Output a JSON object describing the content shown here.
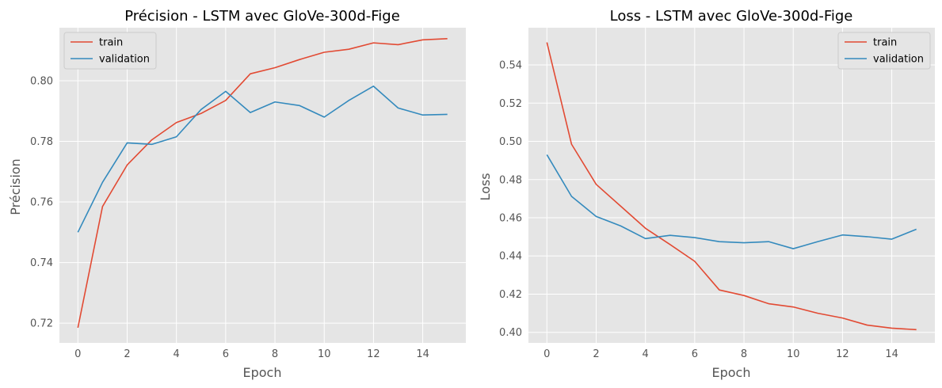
{
  "colors": {
    "train": "#E24A33",
    "validation": "#348ABD",
    "plot_bg": "#E5E5E5",
    "grid": "#FFFFFF"
  },
  "chart_data": [
    {
      "type": "line",
      "title": "Précision - LSTM avec GloVe-300d-Fige",
      "xlabel": "Epoch",
      "ylabel": "Précision",
      "xlim": [
        -0.75,
        15.75
      ],
      "ylim": [
        0.7135,
        0.8175
      ],
      "xticks": [
        0,
        2,
        4,
        6,
        8,
        10,
        12,
        14
      ],
      "yticks": [
        0.72,
        0.74,
        0.76,
        0.78,
        0.8
      ],
      "ytick_labels": [
        "0.72",
        "0.74",
        "0.76",
        "0.78",
        "0.80"
      ],
      "grid": true,
      "legend": "top-left",
      "x": [
        0,
        1,
        2,
        3,
        4,
        5,
        6,
        7,
        8,
        9,
        10,
        11,
        12,
        13,
        14,
        15
      ],
      "series": [
        {
          "name": "train",
          "values": [
            0.7185,
            0.7585,
            0.7722,
            0.7805,
            0.7862,
            0.7892,
            0.7935,
            0.8023,
            0.8043,
            0.807,
            0.8094,
            0.8104,
            0.8125,
            0.8119,
            0.8135,
            0.8139
          ]
        },
        {
          "name": "validation",
          "values": [
            0.75,
            0.7665,
            0.7795,
            0.779,
            0.7815,
            0.7905,
            0.7965,
            0.7895,
            0.793,
            0.7918,
            0.788,
            0.7935,
            0.7982,
            0.791,
            0.7887,
            0.7889
          ]
        }
      ]
    },
    {
      "type": "line",
      "title": "Loss - LSTM avec GloVe-300d-Fige",
      "xlabel": "Epoch",
      "ylabel": "Loss",
      "xlim": [
        -0.75,
        15.75
      ],
      "ylim": [
        0.3945,
        0.5595
      ],
      "xticks": [
        0,
        2,
        4,
        6,
        8,
        10,
        12,
        14
      ],
      "yticks": [
        0.4,
        0.42,
        0.44,
        0.46,
        0.48,
        0.5,
        0.52,
        0.54
      ],
      "ytick_labels": [
        "0.40",
        "0.42",
        "0.44",
        "0.46",
        "0.48",
        "0.50",
        "0.52",
        "0.54"
      ],
      "grid": true,
      "legend": "top-right",
      "x": [
        0,
        1,
        2,
        3,
        4,
        5,
        6,
        7,
        8,
        9,
        10,
        11,
        12,
        13,
        14,
        15
      ],
      "series": [
        {
          "name": "train",
          "values": [
            0.5518,
            0.4985,
            0.4775,
            0.466,
            0.4545,
            0.446,
            0.4372,
            0.4222,
            0.4193,
            0.415,
            0.4133,
            0.41,
            0.4075,
            0.4038,
            0.4022,
            0.4014
          ]
        },
        {
          "name": "validation",
          "values": [
            0.493,
            0.4712,
            0.4607,
            0.4557,
            0.4491,
            0.4508,
            0.4496,
            0.4475,
            0.4469,
            0.4475,
            0.4438,
            0.4475,
            0.451,
            0.4501,
            0.4488,
            0.454
          ]
        }
      ]
    }
  ]
}
